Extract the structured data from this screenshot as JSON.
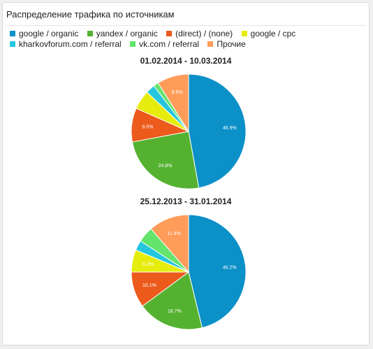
{
  "panel": {
    "title": "Распределение трафика по источникам"
  },
  "legend": [
    {
      "label": "google / organic",
      "color": "#0b90c7"
    },
    {
      "label": "yandex / organic",
      "color": "#55b231"
    },
    {
      "label": "(direct) / (none)",
      "color": "#ec5a1c"
    },
    {
      "label": "google / cpc",
      "color": "#e6ec0c"
    },
    {
      "label": "kharkovforum.com / referral",
      "color": "#25c6dd"
    },
    {
      "label": "vk.com / referral",
      "color": "#63e46b"
    },
    {
      "label": "Прочие",
      "color": "#ff9c5a"
    }
  ],
  "chart_data": [
    {
      "type": "pie",
      "title": "01.02.2014 - 10.03.2014",
      "categories": [
        "google / organic",
        "yandex / organic",
        "(direct) / (none)",
        "google / cpc",
        "kharkovforum.com / referral",
        "vk.com / referral",
        "Прочие"
      ],
      "values": [
        46.9,
        24.8,
        9.5,
        5.4,
        2.6,
        1.4,
        8.9
      ],
      "labels": [
        "46.9%",
        "24.8%",
        "9.5%",
        "",
        "",
        "",
        "8.9%"
      ],
      "colors": [
        "#0b90c7",
        "#55b231",
        "#ec5a1c",
        "#e6ec0c",
        "#25c6dd",
        "#63e46b",
        "#ff9c5a"
      ]
    },
    {
      "type": "pie",
      "title": "25.12.2013 - 31.01.2014",
      "categories": [
        "google / organic",
        "yandex / organic",
        "(direct) / (none)",
        "google / cpc",
        "kharkovforum.com / referral",
        "vk.com / referral",
        "Прочие"
      ],
      "values": [
        46.2,
        18.7,
        10.1,
        6.3,
        2.8,
        4.5,
        11.4
      ],
      "labels": [
        "46.2%",
        "18.7%",
        "10.1%",
        "6.3%",
        "",
        "",
        "11.4%"
      ],
      "colors": [
        "#0b90c7",
        "#55b231",
        "#ec5a1c",
        "#e6ec0c",
        "#25c6dd",
        "#63e46b",
        "#ff9c5a"
      ]
    }
  ]
}
